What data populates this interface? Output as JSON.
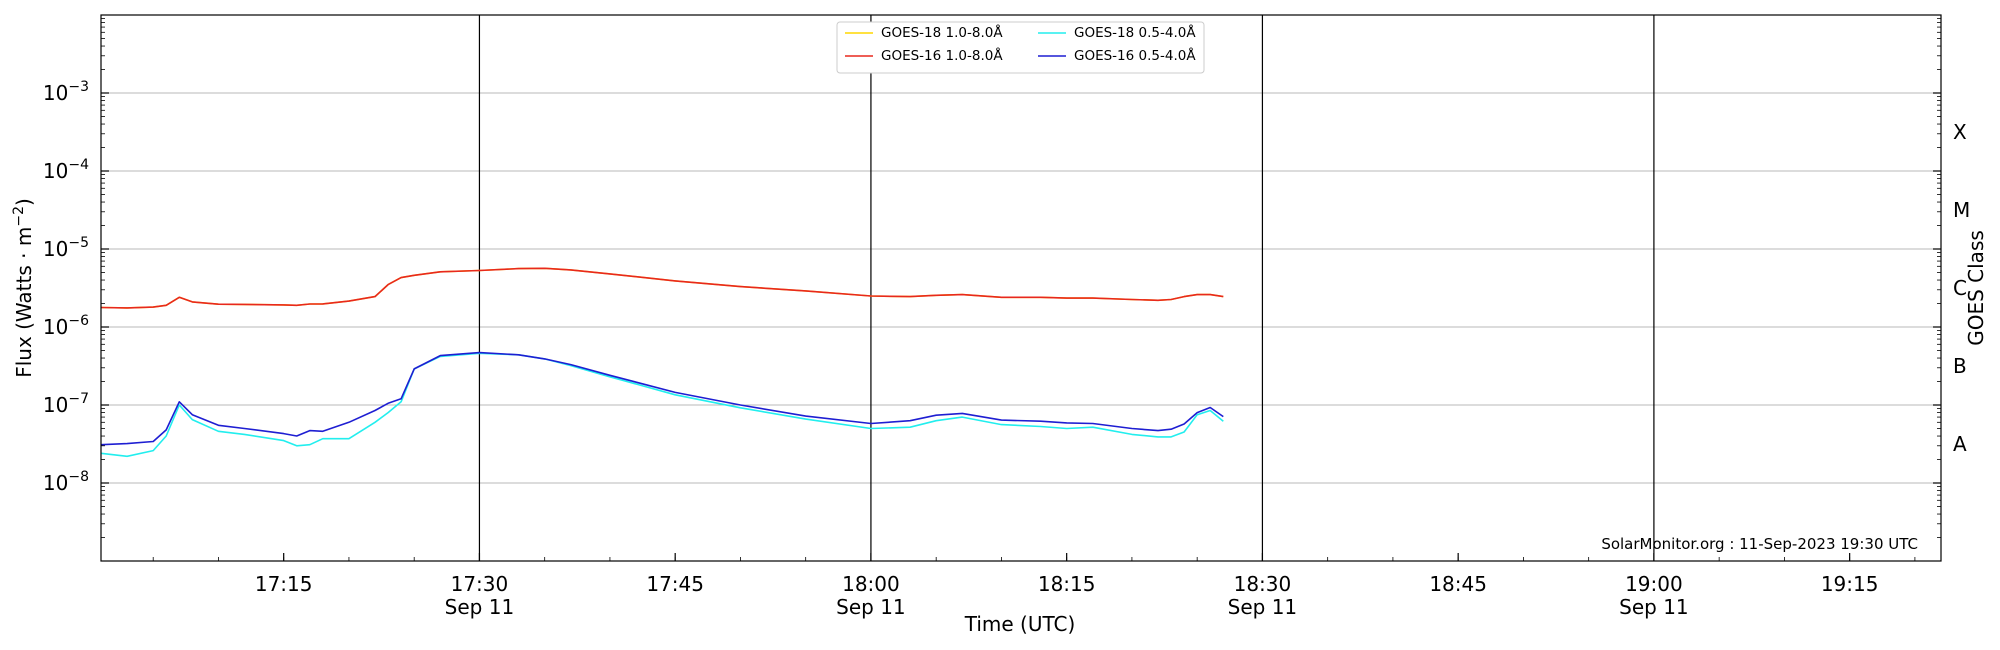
{
  "chart_data": {
    "type": "line",
    "ylabel": "Flux (Watts · m",
    "ylabel_sup": "−2",
    "ylabel_close": ")",
    "xlabel": "Time (UTC)",
    "right_label": "GOES Class",
    "credit": "SolarMonitor.org : 11-Sep-2023 19:30 UTC",
    "y_scale": "log",
    "ylim": [
      -9,
      -2
    ],
    "xlim": [
      "2023-09-11T17:01",
      "2023-09-11T19:22"
    ],
    "grid": "horizontal at decades",
    "legend_position": "top-center",
    "y_ticks": [
      {
        "exp": -3,
        "label": "10",
        "sup": "−3"
      },
      {
        "exp": -4,
        "label": "10",
        "sup": "−4"
      },
      {
        "exp": -5,
        "label": "10",
        "sup": "−5"
      },
      {
        "exp": -6,
        "label": "10",
        "sup": "−6"
      },
      {
        "exp": -7,
        "label": "10",
        "sup": "−7"
      },
      {
        "exp": -8,
        "label": "10",
        "sup": "−8"
      }
    ],
    "x_ticks": [
      {
        "time": "17:15",
        "date": ""
      },
      {
        "time": "17:30",
        "date": "Sep 11"
      },
      {
        "time": "17:45",
        "date": ""
      },
      {
        "time": "18:00",
        "date": "Sep 11"
      },
      {
        "time": "18:15",
        "date": ""
      },
      {
        "time": "18:30",
        "date": "Sep 11"
      },
      {
        "time": "18:45",
        "date": ""
      },
      {
        "time": "19:00",
        "date": "Sep 11"
      },
      {
        "time": "19:15",
        "date": ""
      }
    ],
    "vertical_lines": [
      "17:30",
      "18:00",
      "18:30",
      "19:00"
    ],
    "goes_classes": [
      {
        "label": "X",
        "exp": -3.5
      },
      {
        "label": "M",
        "exp": -4.5
      },
      {
        "label": "C",
        "exp": -5.5
      },
      {
        "label": "B",
        "exp": -6.5
      },
      {
        "label": "A",
        "exp": -7.5
      }
    ],
    "x": [
      "17:01",
      "17:03",
      "17:05",
      "17:06",
      "17:07",
      "17:08",
      "17:10",
      "17:12",
      "17:15",
      "17:16",
      "17:17",
      "17:18",
      "17:20",
      "17:22",
      "17:23",
      "17:24",
      "17:25",
      "17:27",
      "17:30",
      "17:33",
      "17:35",
      "17:37",
      "17:40",
      "17:45",
      "17:50",
      "17:55",
      "18:00",
      "18:03",
      "18:05",
      "18:07",
      "18:10",
      "18:13",
      "18:15",
      "18:17",
      "18:20",
      "18:22",
      "18:23",
      "18:24",
      "18:25",
      "18:26",
      "18:27"
    ],
    "series": [
      {
        "name": "GOES-18 1.0-8.0Å",
        "color": "#ffd700",
        "values": [
          1.78e-06,
          1.76e-06,
          1.8e-06,
          1.9e-06,
          2.4e-06,
          2.1e-06,
          1.96e-06,
          1.95e-06,
          1.92e-06,
          1.9e-06,
          1.97e-06,
          1.98e-06,
          2.15e-06,
          2.45e-06,
          3.5e-06,
          4.3e-06,
          4.6e-06,
          5.1e-06,
          5.3e-06,
          5.6e-06,
          5.65e-06,
          5.4e-06,
          4.8e-06,
          3.9e-06,
          3.3e-06,
          2.9e-06,
          2.5e-06,
          2.45e-06,
          2.55e-06,
          2.6e-06,
          2.4e-06,
          2.4e-06,
          2.35e-06,
          2.35e-06,
          2.25e-06,
          2.2e-06,
          2.25e-06,
          2.45e-06,
          2.6e-06,
          2.6e-06,
          2.45e-06
        ]
      },
      {
        "name": "GOES-16 1.0-8.0Å",
        "color": "#e8281e",
        "values": [
          1.78e-06,
          1.76e-06,
          1.8e-06,
          1.9e-06,
          2.4e-06,
          2.1e-06,
          1.96e-06,
          1.95e-06,
          1.92e-06,
          1.9e-06,
          1.97e-06,
          1.98e-06,
          2.15e-06,
          2.45e-06,
          3.5e-06,
          4.3e-06,
          4.6e-06,
          5.1e-06,
          5.3e-06,
          5.6e-06,
          5.65e-06,
          5.4e-06,
          4.8e-06,
          3.9e-06,
          3.3e-06,
          2.9e-06,
          2.5e-06,
          2.45e-06,
          2.55e-06,
          2.6e-06,
          2.4e-06,
          2.4e-06,
          2.35e-06,
          2.35e-06,
          2.25e-06,
          2.2e-06,
          2.25e-06,
          2.45e-06,
          2.6e-06,
          2.6e-06,
          2.45e-06
        ]
      },
      {
        "name": "GOES-18 0.5-4.0Å",
        "color": "#22eeee",
        "values": [
          2.4e-08,
          2.2e-08,
          2.6e-08,
          4e-08,
          1e-07,
          6.5e-08,
          4.6e-08,
          4.2e-08,
          3.5e-08,
          3e-08,
          3.1e-08,
          3.7e-08,
          3.7e-08,
          6e-08,
          8e-08,
          1.1e-07,
          2.9e-07,
          4.2e-07,
          4.6e-07,
          4.4e-07,
          3.9e-07,
          3.2e-07,
          2.3e-07,
          1.35e-07,
          9.2e-08,
          6.6e-08,
          5e-08,
          5.2e-08,
          6.3e-08,
          7e-08,
          5.6e-08,
          5.3e-08,
          5e-08,
          5.2e-08,
          4.2e-08,
          3.9e-08,
          3.9e-08,
          4.5e-08,
          7.5e-08,
          8.5e-08,
          6.2e-08
        ]
      },
      {
        "name": "GOES-16 0.5-4.0Å",
        "color": "#1e1ed2",
        "values": [
          3.1e-08,
          3.2e-08,
          3.4e-08,
          4.8e-08,
          1.1e-07,
          7.5e-08,
          5.5e-08,
          5e-08,
          4.3e-08,
          4e-08,
          4.7e-08,
          4.6e-08,
          6e-08,
          8.5e-08,
          1.05e-07,
          1.2e-07,
          2.9e-07,
          4.3e-07,
          4.7e-07,
          4.4e-07,
          3.9e-07,
          3.3e-07,
          2.4e-07,
          1.45e-07,
          1e-07,
          7.2e-08,
          5.8e-08,
          6.3e-08,
          7.4e-08,
          7.8e-08,
          6.4e-08,
          6.2e-08,
          5.9e-08,
          5.8e-08,
          5e-08,
          4.7e-08,
          4.9e-08,
          5.7e-08,
          8e-08,
          9.3e-08,
          7.1e-08
        ]
      }
    ]
  }
}
